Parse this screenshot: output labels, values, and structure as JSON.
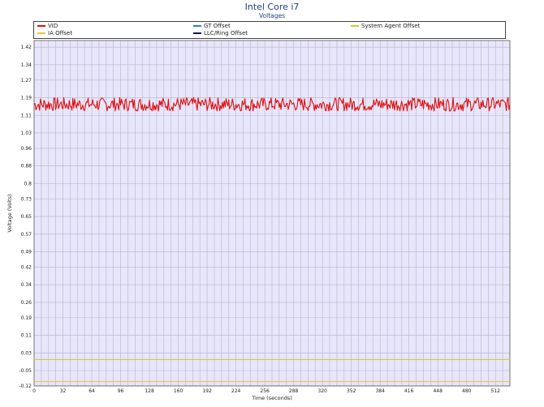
{
  "chart_data": {
    "type": "line",
    "title": "Intel Core i7",
    "subtitle": "Voltages",
    "xlabel": "Time (seconds)",
    "ylabel": "Voltage (Volts)",
    "xlim": [
      0,
      528
    ],
    "ylim": [
      -0.12,
      1.45
    ],
    "x_ticks": [
      0,
      32,
      64,
      96,
      128,
      160,
      192,
      224,
      256,
      288,
      320,
      352,
      384,
      416,
      448,
      480,
      512
    ],
    "y_ticks": [
      1.42,
      1.34,
      1.27,
      1.19,
      1.11,
      1.03,
      0.96,
      0.88,
      0.8,
      0.73,
      0.65,
      0.57,
      0.49,
      0.42,
      0.34,
      0.26,
      0.19,
      0.11,
      0.03,
      -0.05,
      -0.12
    ],
    "grid": true,
    "legend_position": "top",
    "legend": [
      {
        "name": "VID",
        "color": "#e01010"
      },
      {
        "name": "GT Offset",
        "color": "#2a7fd4"
      },
      {
        "name": "System Agent Offset",
        "color": "#c8d020"
      },
      {
        "name": "IA Offset",
        "color": "#f0c040"
      },
      {
        "name": "LLC/Ring Offset",
        "color": "#101060"
      }
    ],
    "series": [
      {
        "name": "VID",
        "color": "#e01010",
        "x_start": 0,
        "x_end": 528,
        "typical": 1.16,
        "range": [
          1.13,
          1.2
        ]
      },
      {
        "name": "System Agent Offset",
        "color": "#c8d020",
        "x": [
          0,
          528
        ],
        "values": [
          0.0,
          0.0
        ]
      },
      {
        "name": "IA Offset",
        "color": "#f0c040",
        "x": [
          0,
          528
        ],
        "values": [
          -0.1,
          -0.1
        ]
      }
    ]
  }
}
